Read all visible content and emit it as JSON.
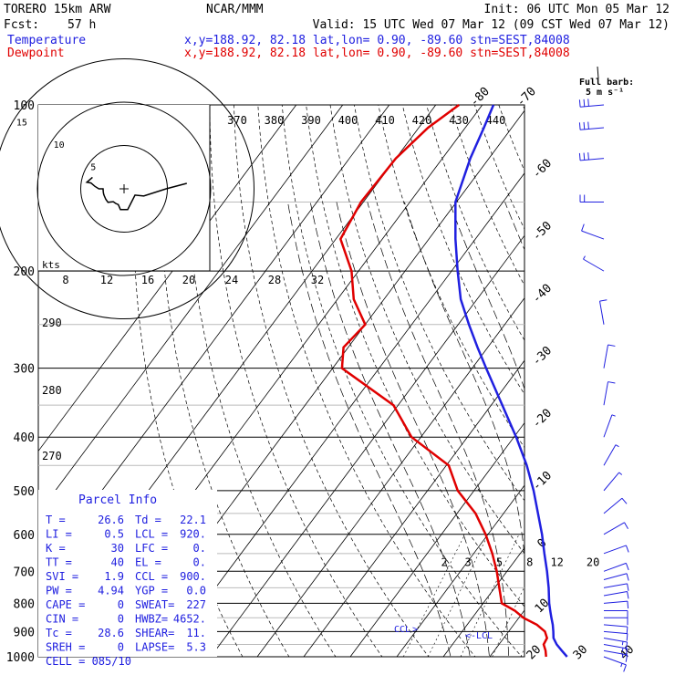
{
  "header": {
    "model": "TORERO  15km ARW",
    "org": "NCAR/MMM",
    "init": "Init: 06 UTC Mon 05 Mar 12",
    "fcst_label": "Fcst:",
    "fcst_value": "57 h",
    "valid": "Valid: 15 UTC Wed 07 Mar 12 (09 CST Wed 07 Mar 12)",
    "temp_label": "Temperature",
    "dew_label": "Dewpoint",
    "loc_temp": "x,y=188.92, 82.18   lat,lon=  0.90, -89.60  stn=SEST,84008",
    "loc_dew": "x,y=188.92, 82.18   lat,lon=  0.90, -89.60  stn=SEST,84008",
    "colors": {
      "temp": "#2020e0",
      "dew": "#e00000",
      "text": "#000000"
    }
  },
  "chart_data": {
    "type": "line",
    "chart_kind": "skew-T log-p sounding",
    "y_axis": {
      "label": "",
      "scale": "log",
      "ticks": [
        100,
        200,
        300,
        400,
        500,
        600,
        700,
        800,
        900,
        1000
      ],
      "ylim": [
        1000,
        100
      ]
    },
    "isotherm_labels": [
      "-80",
      "-70",
      "-60",
      "-50",
      "-40",
      "-30",
      "-20",
      "-10",
      "0",
      "10",
      "20",
      "30",
      "40"
    ],
    "potential_temp_labels": [
      "370",
      "380",
      "390",
      "400",
      "410",
      "420",
      "430",
      "440"
    ],
    "mixing_ratio_labels": [
      "2",
      "3",
      "5",
      "8",
      "12",
      "20"
    ],
    "dry_adiabat_labels": [
      "290",
      "280",
      "270"
    ],
    "series": [
      {
        "name": "Temperature",
        "color": "#2020e0",
        "p": [
          1000,
          975,
          950,
          925,
          900,
          875,
          850,
          825,
          800,
          750,
          700,
          650,
          600,
          550,
          500,
          450,
          400,
          350,
          300,
          275,
          250,
          225,
          200,
          175,
          150,
          125,
          110,
          100
        ],
        "t": [
          26.6,
          24.5,
          22.4,
          20.7,
          19.6,
          18.4,
          17.0,
          15.6,
          14.2,
          11.6,
          8.6,
          5.2,
          1.6,
          -2.6,
          -7.2,
          -12.7,
          -19.5,
          -27.6,
          -37.0,
          -42.2,
          -47.7,
          -53.5,
          -58.7,
          -64.3,
          -70.2,
          -74.0,
          -76.0,
          -77.6
        ]
      },
      {
        "name": "Dewpoint",
        "color": "#e00000",
        "p": [
          1000,
          975,
          950,
          925,
          900,
          875,
          850,
          825,
          800,
          750,
          700,
          650,
          600,
          550,
          500,
          450,
          400,
          350,
          300,
          275,
          250,
          225,
          200,
          175,
          150,
          125,
          110,
          100
        ],
        "td": [
          22.1,
          21.0,
          19.6,
          19.3,
          17.8,
          15.0,
          11.0,
          8.0,
          4.0,
          1.0,
          -2.2,
          -6.0,
          -10.5,
          -16.0,
          -23.5,
          -29.5,
          -42.0,
          -51.0,
          -68.0,
          -71.0,
          -70.0,
          -76.5,
          -81.5,
          -89.0,
          -90.5,
          -90.0,
          -88.0,
          -85.0
        ]
      }
    ],
    "annotations": {
      "lcl": "LCL",
      "ccl": "CCL",
      "barb_legend": "Full barb:",
      "barb_unit": "5 m s⁻¹"
    },
    "hodograph": {
      "unit_label": "kts",
      "ring_labels": [
        "5",
        "10",
        "15"
      ],
      "speed_scale": [
        "8",
        "12",
        "16",
        "20",
        "24",
        "28",
        "32"
      ]
    },
    "winds": {
      "p": [
        1000,
        975,
        950,
        925,
        900,
        875,
        850,
        825,
        800,
        775,
        750,
        725,
        700,
        650,
        600,
        550,
        500,
        450,
        400,
        350,
        300,
        250,
        200,
        175,
        150,
        125,
        110,
        100
      ],
      "speed": [
        8,
        9,
        9,
        8,
        7,
        7,
        6,
        5,
        5,
        5,
        5,
        5,
        5,
        5,
        5,
        5,
        4,
        4,
        4,
        5,
        5,
        5,
        3,
        5,
        10,
        15,
        15,
        15
      ],
      "dir": [
        110,
        100,
        100,
        100,
        95,
        95,
        90,
        90,
        85,
        80,
        80,
        75,
        70,
        70,
        60,
        50,
        40,
        30,
        20,
        10,
        10,
        350,
        300,
        290,
        270,
        265,
        265,
        265
      ]
    }
  },
  "parcel": {
    "title": "Parcel Info",
    "rows": [
      [
        "T  =",
        "26.6",
        "Td =",
        "22.1"
      ],
      [
        "LI =",
        "0.5",
        "LCL =",
        "920."
      ],
      [
        "K  =",
        "30",
        "LFC =",
        "0."
      ],
      [
        "TT =",
        "40",
        "EL  =",
        "0."
      ],
      [
        "SVI =",
        "1.9",
        "CCL =",
        "900."
      ],
      [
        "PW =",
        "4.94",
        "YGP =",
        "0.0"
      ],
      [
        "CAPE =",
        "0",
        "SWEAT=",
        "227"
      ],
      [
        "CIN  =",
        "0",
        "HWBZ= ",
        "4652."
      ],
      [
        "Tc  =",
        "28.6",
        "SHEAR=",
        "11."
      ],
      [
        "SREH =",
        "0",
        "LAPSE=",
        "5.3"
      ]
    ],
    "cell": "CELL = 085/10"
  }
}
